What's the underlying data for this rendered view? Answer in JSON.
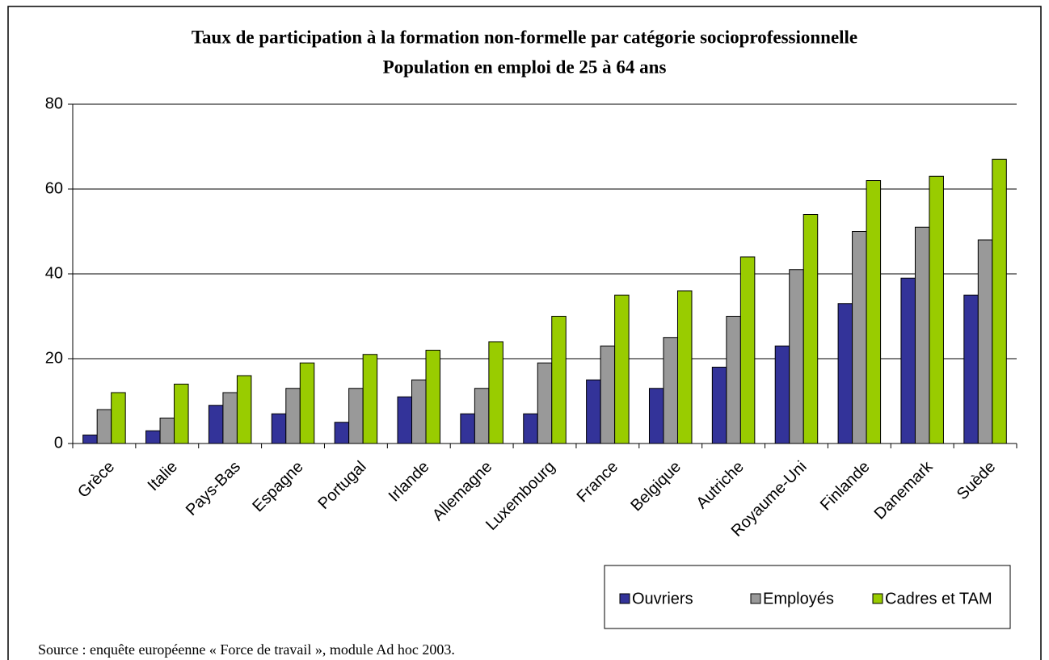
{
  "chart_data": {
    "type": "bar",
    "title": "Taux de participation à la formation non-formelle par catégorie socioprofessionnelle",
    "subtitle": "Population en emploi de 25 à 64 ans",
    "source": "Source : enquête européenne « Force de travail », module Ad hoc 2003.",
    "categories": [
      "Grèce",
      "Italie",
      "Pays-Bas",
      "Espagne",
      "Portugal",
      "Irlande",
      "Allemagne",
      "Luxembourg",
      "France",
      "Belgique",
      "Autriche",
      "Royaume-Uni",
      "Finlande",
      "Danemark",
      "Suède"
    ],
    "series": [
      {
        "name": "Ouvriers",
        "color": "#333399",
        "values": [
          2,
          3,
          9,
          7,
          5,
          11,
          7,
          7,
          15,
          13,
          18,
          23,
          33,
          39,
          35
        ]
      },
      {
        "name": "Employés",
        "color": "#999999",
        "values": [
          8,
          6,
          12,
          13,
          13,
          15,
          13,
          19,
          23,
          25,
          30,
          41,
          50,
          51,
          48
        ]
      },
      {
        "name": "Cadres et TAM",
        "color": "#99cc00",
        "values": [
          12,
          14,
          16,
          19,
          21,
          22,
          24,
          30,
          35,
          36,
          44,
          54,
          62,
          63,
          67
        ]
      }
    ],
    "ylim": [
      0,
      80
    ],
    "yticks": [
      0,
      20,
      40,
      60,
      80
    ],
    "grid": true,
    "legend": "bottom-right"
  }
}
